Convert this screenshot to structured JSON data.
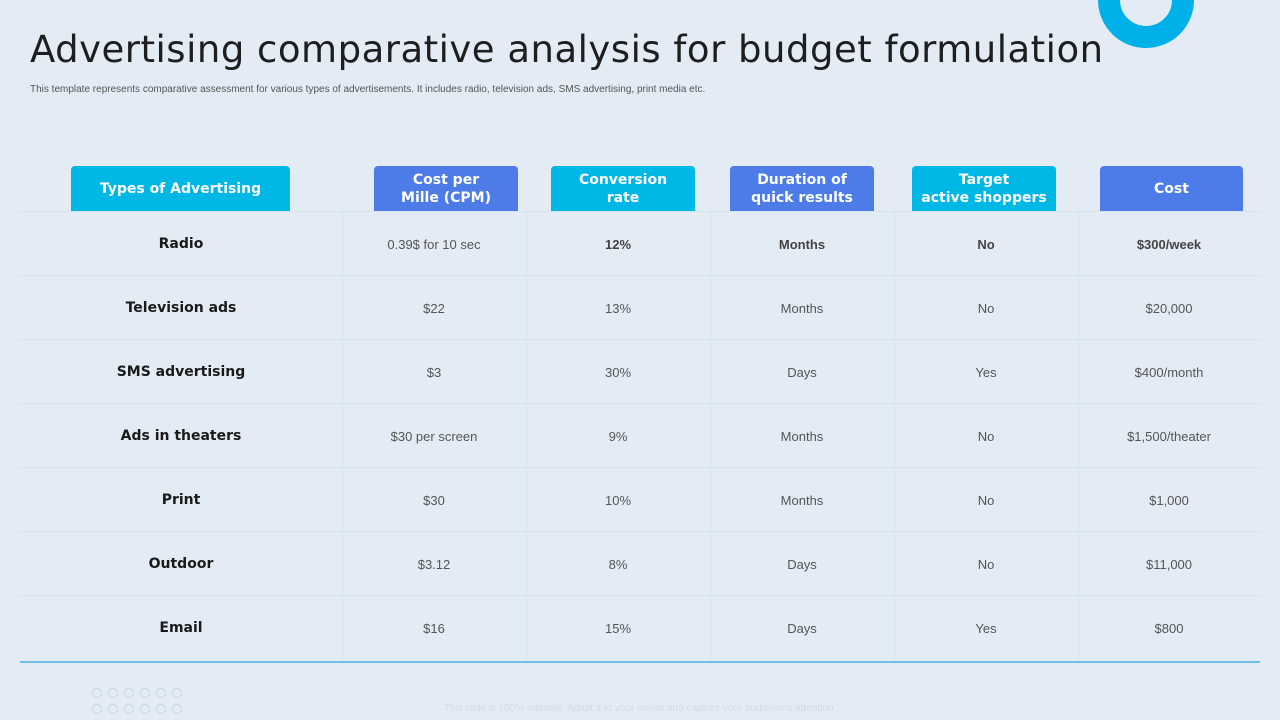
{
  "title": "Advertising comparative analysis for budget formulation",
  "subtitle": "This template represents comparative assessment for various types of advertisements. It includes radio, television ads, SMS advertising, print media etc.",
  "colors": {
    "cyan": "#00b7e6",
    "blue": "#4d7be8",
    "background": "#e3ecf5"
  },
  "headers": [
    "Types of Advertising",
    "Cost per\nMille (CPM)",
    "Conversion\nrate",
    "Duration of\nquick results",
    "Target\nactive shoppers",
    "Cost"
  ],
  "rows": [
    [
      "Radio",
      "0.39$ for 10 sec",
      "12%",
      "Months",
      "No",
      "$300/week"
    ],
    [
      "Television ads",
      "$22",
      "13%",
      "Months",
      "No",
      "$20,000"
    ],
    [
      "SMS advertising",
      "$3",
      "30%",
      "Days",
      "Yes",
      "$400/month"
    ],
    [
      "Ads in theaters",
      "$30  per screen",
      "9%",
      "Months",
      "No",
      "$1,500/theater"
    ],
    [
      "Print",
      "$30",
      "10%",
      "Months",
      "No",
      "$1,000"
    ],
    [
      "Outdoor",
      "$3.12",
      "8%",
      "Days",
      "No",
      "$11,000"
    ],
    [
      "Email",
      "$16",
      "15%",
      "Days",
      "Yes",
      "$800"
    ]
  ],
  "footer": "This slide is 100% editable. Adapt it to your needs and capture your audience's attention."
}
